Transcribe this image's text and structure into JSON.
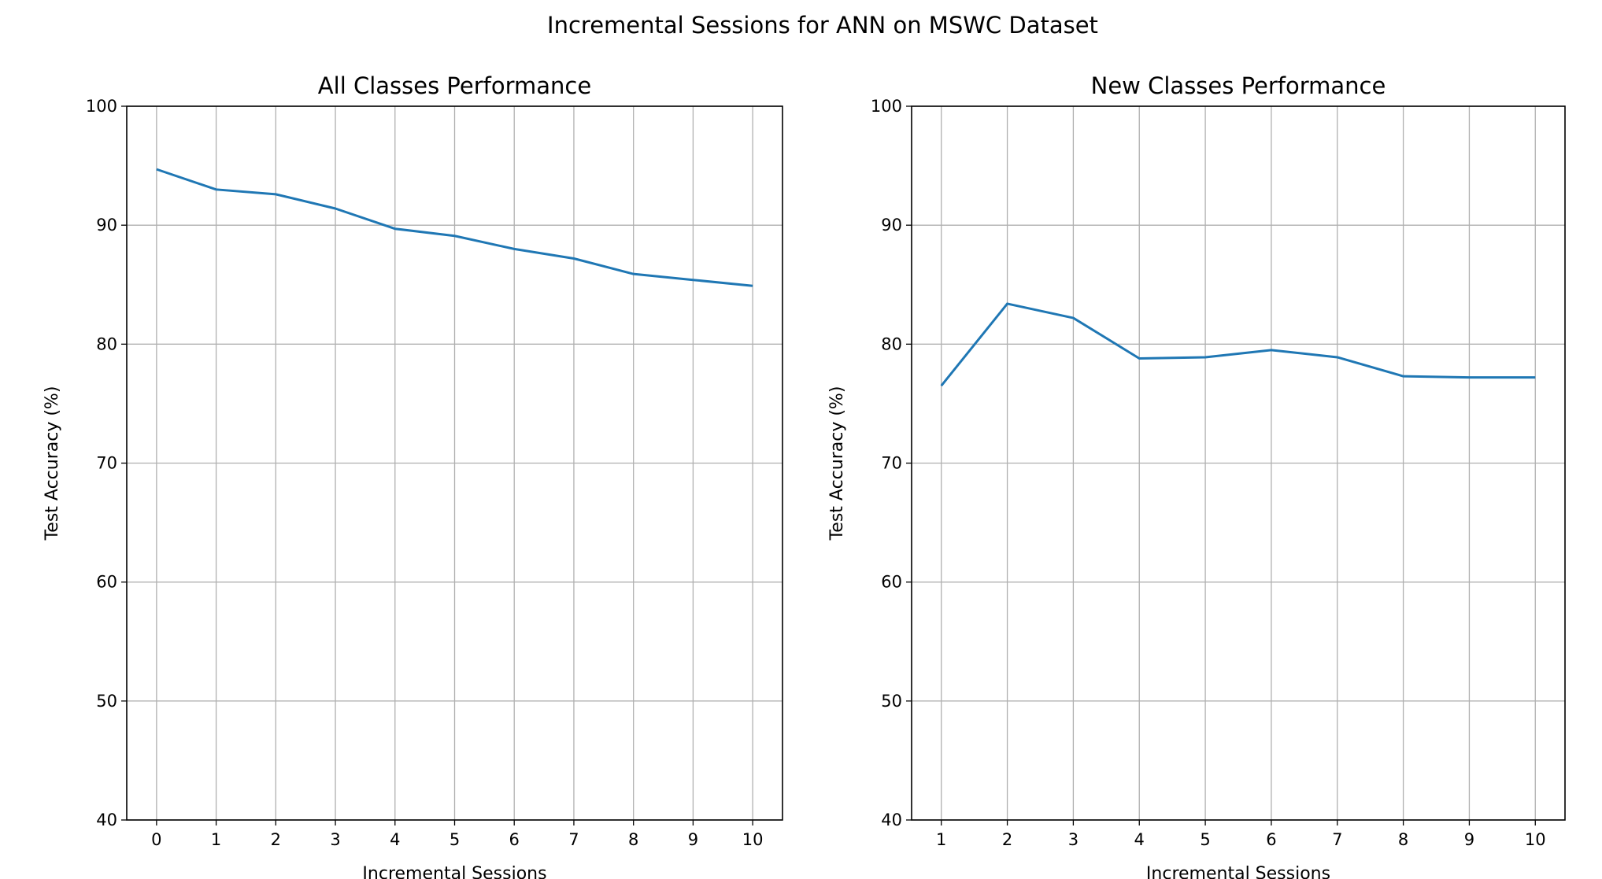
{
  "suptitle": "Incremental Sessions for ANN on MSWC Dataset",
  "chart_data": [
    {
      "type": "line",
      "title": "All Classes Performance",
      "xlabel": "Incremental Sessions",
      "ylabel": "Test Accuracy (%)",
      "x": [
        0,
        1,
        2,
        3,
        4,
        5,
        6,
        7,
        8,
        9,
        10
      ],
      "values": [
        94.7,
        93.0,
        92.6,
        91.4,
        89.7,
        89.1,
        88.0,
        87.2,
        85.9,
        85.4,
        84.9
      ],
      "xlim": [
        -0.5,
        10.5
      ],
      "ylim": [
        40,
        100
      ],
      "yticks": [
        40,
        50,
        60,
        70,
        80,
        90,
        100
      ],
      "grid": true,
      "color": "#1f77b4"
    },
    {
      "type": "line",
      "title": "New Classes Performance",
      "xlabel": "Incremental Sessions",
      "ylabel": "Test Accuracy (%)",
      "x": [
        1,
        2,
        3,
        4,
        5,
        6,
        7,
        8,
        9,
        10
      ],
      "values": [
        76.5,
        83.4,
        82.2,
        78.8,
        78.9,
        79.5,
        78.9,
        77.3,
        77.2,
        77.2
      ],
      "xlim": [
        0.55,
        10.45
      ],
      "ylim": [
        40,
        100
      ],
      "yticks": [
        40,
        50,
        60,
        70,
        80,
        90,
        100
      ],
      "grid": true,
      "color": "#1f77b4"
    }
  ]
}
